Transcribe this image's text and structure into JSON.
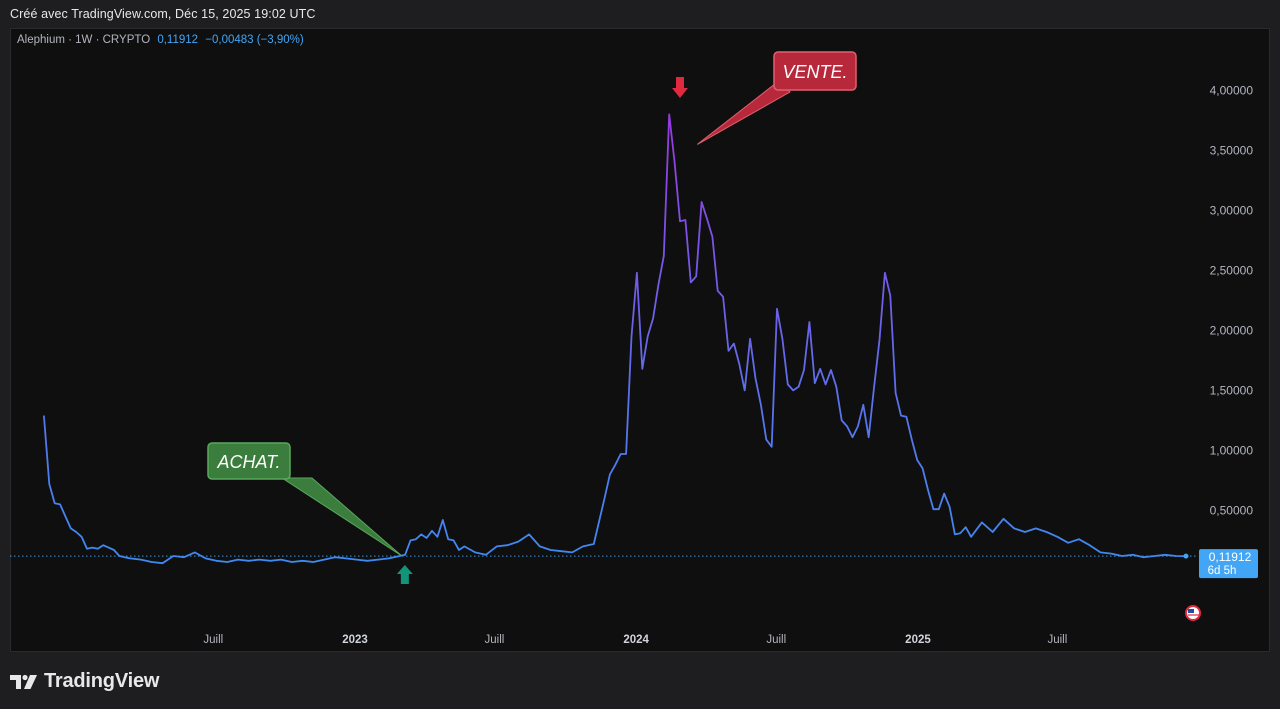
{
  "header": {
    "created_text": "Créé avec TradingView.com, Déc 15, 2025 19:02 UTC"
  },
  "legend": {
    "symbol": "Alephium · 1W · CRYPTO",
    "last_value": "0,11912",
    "change": "−0,00483 (−3,90%)"
  },
  "footer": {
    "brand": "TradingView"
  },
  "colors": {
    "line_low": "#3d8bf0",
    "line_high": "#9b35e0",
    "accent_blue": "#42a5f5",
    "buy_green": "#3a7d3c",
    "buy_arrow": "#139478",
    "sell_red": "#b8283b",
    "sell_arrow": "#e0293f"
  },
  "annotations": {
    "buy_label": "ACHAT.",
    "sell_label": "VENTE."
  },
  "price_label": {
    "value": "0,11912",
    "countdown": "6d 5h"
  },
  "chart_data": {
    "type": "line",
    "title": "",
    "xlabel": "",
    "ylabel": "",
    "ylim": [
      -0.68,
      4.52
    ],
    "x_ticks": [
      {
        "label": "Juill",
        "date": "2022-07-01",
        "bold": false
      },
      {
        "label": "2023",
        "date": "2023-01-01",
        "bold": true
      },
      {
        "label": "Juill",
        "date": "2023-07-01",
        "bold": false
      },
      {
        "label": "2024",
        "date": "2024-01-01",
        "bold": true
      },
      {
        "label": "Juill",
        "date": "2024-07-01",
        "bold": false
      },
      {
        "label": "2025",
        "date": "2025-01-01",
        "bold": true
      },
      {
        "label": "Juill",
        "date": "2025-07-01",
        "bold": false
      }
    ],
    "y_ticks": [
      "0,50000",
      "1,00000",
      "1,50000",
      "2,00000",
      "2,50000",
      "3,00000",
      "3,50000",
      "4,00000"
    ],
    "y_tick_values": [
      0.5,
      1.0,
      1.5,
      2.0,
      2.5,
      3.0,
      3.5,
      4.0
    ],
    "current_price": 0.11912,
    "buy_marker": {
      "date": "2023-03-08",
      "value": 0.12
    },
    "sell_marker": {
      "date": "2024-03-27",
      "value": 3.55
    },
    "series": [
      {
        "x": [
          "2021-11-23",
          "2021-11-30",
          "2021-12-07",
          "2021-12-14",
          "2021-12-21",
          "2021-12-28",
          "2022-01-04",
          "2022-01-11",
          "2022-01-18",
          "2022-01-25",
          "2022-02-01",
          "2022-02-08",
          "2022-02-15",
          "2022-02-22",
          "2022-03-01",
          "2022-03-08",
          "2022-03-15",
          "2022-03-29",
          "2022-04-12",
          "2022-04-26",
          "2022-05-10",
          "2022-05-24",
          "2022-06-07",
          "2022-06-21",
          "2022-07-05",
          "2022-07-19",
          "2022-08-02",
          "2022-08-16",
          "2022-08-30",
          "2022-09-13",
          "2022-09-27",
          "2022-10-11",
          "2022-10-25",
          "2022-11-08",
          "2022-11-22",
          "2022-12-06",
          "2022-12-20",
          "2023-01-03",
          "2023-01-17",
          "2023-01-31",
          "2023-02-14",
          "2023-02-28",
          "2023-03-07",
          "2023-03-14",
          "2023-03-21",
          "2023-03-28",
          "2023-04-04",
          "2023-04-11",
          "2023-04-18",
          "2023-04-25",
          "2023-05-02",
          "2023-05-09",
          "2023-05-16",
          "2023-05-23",
          "2023-06-06",
          "2023-06-20",
          "2023-07-04",
          "2023-07-18",
          "2023-08-01",
          "2023-08-15",
          "2023-08-29",
          "2023-09-12",
          "2023-09-26",
          "2023-10-10",
          "2023-10-24",
          "2023-11-07",
          "2023-11-21",
          "2023-11-28",
          "2023-12-05",
          "2023-12-12",
          "2023-12-19",
          "2023-12-26",
          "2024-01-02",
          "2024-01-09",
          "2024-01-16",
          "2024-01-23",
          "2024-01-30",
          "2024-02-06",
          "2024-02-13",
          "2024-02-20",
          "2024-02-27",
          "2024-03-05",
          "2024-03-12",
          "2024-03-19",
          "2024-03-26",
          "2024-04-02",
          "2024-04-09",
          "2024-04-16",
          "2024-04-23",
          "2024-04-30",
          "2024-05-07",
          "2024-05-14",
          "2024-05-21",
          "2024-05-28",
          "2024-06-04",
          "2024-06-11",
          "2024-06-18",
          "2024-06-25",
          "2024-07-02",
          "2024-07-09",
          "2024-07-16",
          "2024-07-23",
          "2024-07-30",
          "2024-08-06",
          "2024-08-13",
          "2024-08-20",
          "2024-08-27",
          "2024-09-03",
          "2024-09-10",
          "2024-09-17",
          "2024-09-24",
          "2024-10-01",
          "2024-10-08",
          "2024-10-15",
          "2024-10-22",
          "2024-10-29",
          "2024-11-05",
          "2024-11-12",
          "2024-11-19",
          "2024-11-26",
          "2024-12-03",
          "2024-12-10",
          "2024-12-17",
          "2024-12-24",
          "2024-12-31",
          "2025-01-07",
          "2025-01-14",
          "2025-01-21",
          "2025-01-28",
          "2025-02-04",
          "2025-02-11",
          "2025-02-18",
          "2025-02-25",
          "2025-03-04",
          "2025-03-11",
          "2025-03-18",
          "2025-03-25",
          "2025-04-08",
          "2025-04-22",
          "2025-05-06",
          "2025-05-20",
          "2025-06-03",
          "2025-06-17",
          "2025-07-01",
          "2025-07-15",
          "2025-07-29",
          "2025-08-12",
          "2025-08-26",
          "2025-09-09",
          "2025-09-23",
          "2025-10-07",
          "2025-10-21",
          "2025-11-04",
          "2025-11-18",
          "2025-12-02",
          "2025-12-15"
        ],
        "values": [
          1.29,
          0.72,
          0.56,
          0.55,
          0.45,
          0.35,
          0.32,
          0.28,
          0.18,
          0.19,
          0.18,
          0.21,
          0.19,
          0.17,
          0.12,
          0.11,
          0.1,
          0.09,
          0.07,
          0.06,
          0.12,
          0.11,
          0.15,
          0.1,
          0.08,
          0.07,
          0.09,
          0.08,
          0.09,
          0.08,
          0.09,
          0.07,
          0.08,
          0.07,
          0.09,
          0.11,
          0.1,
          0.09,
          0.08,
          0.09,
          0.1,
          0.12,
          0.13,
          0.25,
          0.26,
          0.3,
          0.27,
          0.33,
          0.28,
          0.42,
          0.26,
          0.25,
          0.17,
          0.2,
          0.15,
          0.13,
          0.2,
          0.21,
          0.24,
          0.3,
          0.2,
          0.17,
          0.16,
          0.15,
          0.2,
          0.22,
          0.6,
          0.8,
          0.88,
          0.97,
          0.97,
          1.95,
          2.48,
          1.68,
          1.95,
          2.1,
          2.38,
          2.62,
          3.8,
          3.4,
          2.91,
          2.92,
          2.4,
          2.45,
          3.07,
          2.93,
          2.78,
          2.33,
          2.28,
          1.83,
          1.89,
          1.72,
          1.5,
          1.93,
          1.6,
          1.38,
          1.09,
          1.03,
          2.18,
          1.93,
          1.55,
          1.5,
          1.53,
          1.67,
          2.07,
          1.56,
          1.68,
          1.55,
          1.67,
          1.53,
          1.25,
          1.2,
          1.11,
          1.2,
          1.38,
          1.11,
          1.53,
          1.92,
          2.48,
          2.29,
          1.48,
          1.29,
          1.28,
          1.09,
          0.92,
          0.85,
          0.67,
          0.51,
          0.51,
          0.64,
          0.53,
          0.3,
          0.31,
          0.36,
          0.28,
          0.34,
          0.4,
          0.32,
          0.43,
          0.35,
          0.32,
          0.35,
          0.32,
          0.28,
          0.23,
          0.26,
          0.21,
          0.15,
          0.14,
          0.12,
          0.13,
          0.11,
          0.12,
          0.13,
          0.12,
          0.11912
        ]
      }
    ]
  }
}
